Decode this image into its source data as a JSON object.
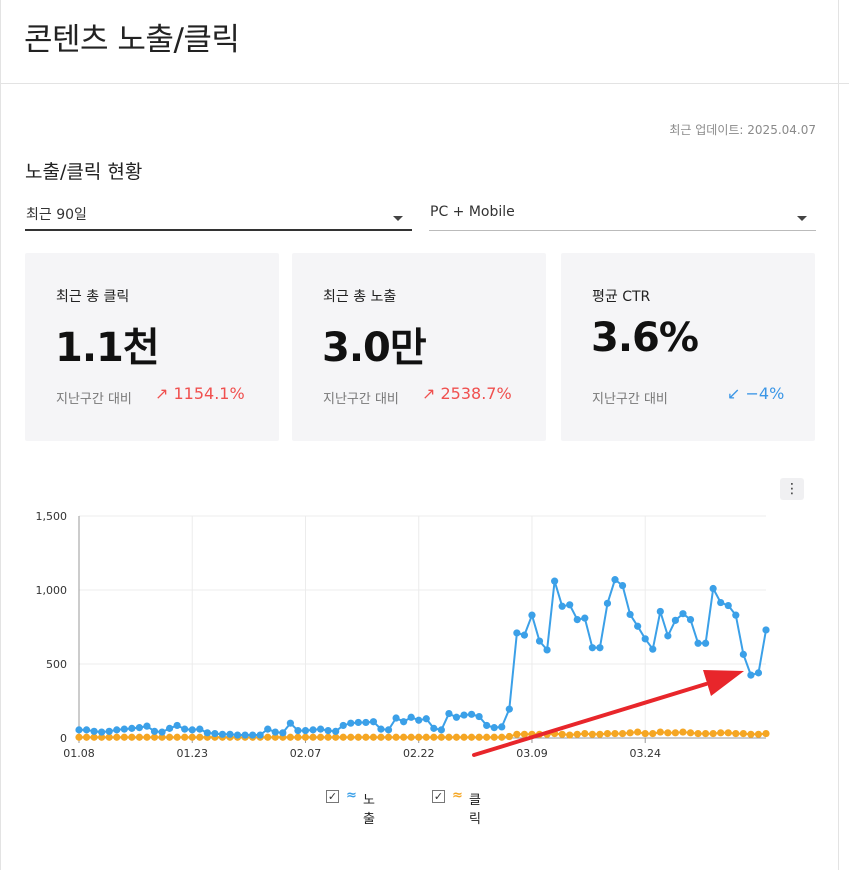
{
  "header": {
    "title": "콘텐츠 노출/클릭"
  },
  "update_text": "최근 업데이트: 2025.04.07",
  "section_title": "노출/클릭 현황",
  "filters": {
    "period": "최근 90일",
    "device": "PC + Mobile"
  },
  "cards": [
    {
      "label": "최근 총 클릭",
      "value": "1.1천",
      "sub": "지난구간 대비",
      "delta": "↗ 1154.1%",
      "direction": "up"
    },
    {
      "label": "최근 총 노출",
      "value": "3.0만",
      "sub": "지난구간 대비",
      "delta": "↗ 2538.7%",
      "direction": "up"
    },
    {
      "label": "평균 CTR",
      "value": "3.6%",
      "sub": "지난구간 대비",
      "delta": "↙ −4%",
      "direction": "down"
    }
  ],
  "menu_icon": "⋮",
  "colors": {
    "impressions": "#3ba0e8",
    "clicks": "#f5a623",
    "annotation_arrow": "#e8262b",
    "delta_up": "#f0504f",
    "delta_down": "#3b96e6"
  },
  "legend": {
    "impressions": {
      "checked": "✓",
      "symbol": "≈",
      "label": "노출"
    },
    "clicks": {
      "checked": "✓",
      "symbol": "≈",
      "label": "클릭"
    }
  },
  "chart_data": {
    "type": "line",
    "ylim": [
      0,
      1500
    ],
    "yticks": [
      0,
      500,
      1000,
      1500
    ],
    "ytick_labels": [
      "0",
      "500",
      "1,000",
      "1,500"
    ],
    "xtick_labels": [
      "01.08",
      "01.23",
      "02.07",
      "02.22",
      "03.09",
      "03.24"
    ],
    "xtick_index": [
      0,
      15,
      30,
      45,
      60,
      75
    ],
    "grid": true,
    "series": [
      {
        "name": "노출",
        "values": [
          55,
          55,
          45,
          40,
          45,
          55,
          60,
          65,
          70,
          80,
          45,
          40,
          65,
          85,
          60,
          55,
          60,
          35,
          30,
          25,
          25,
          20,
          20,
          20,
          20,
          60,
          40,
          35,
          100,
          50,
          50,
          55,
          60,
          50,
          45,
          85,
          100,
          105,
          105,
          110,
          60,
          55,
          135,
          110,
          140,
          120,
          130,
          65,
          55,
          165,
          140,
          155,
          160,
          145,
          85,
          70,
          75,
          195,
          710,
          695,
          830,
          655,
          595,
          1060,
          890,
          900,
          800,
          810,
          610,
          610,
          910,
          1070,
          1030,
          835,
          755,
          670,
          600,
          855,
          690,
          795,
          840,
          800,
          640,
          640,
          1010,
          915,
          895,
          830,
          565,
          425,
          440,
          730
        ]
      },
      {
        "name": "클릭",
        "values": [
          5,
          5,
          5,
          5,
          5,
          5,
          5,
          5,
          5,
          5,
          5,
          5,
          5,
          5,
          5,
          5,
          5,
          5,
          5,
          5,
          5,
          5,
          5,
          5,
          5,
          5,
          5,
          5,
          5,
          5,
          5,
          5,
          5,
          5,
          5,
          5,
          5,
          5,
          5,
          5,
          5,
          5,
          5,
          5,
          5,
          5,
          5,
          5,
          5,
          5,
          5,
          5,
          5,
          5,
          5,
          5,
          5,
          10,
          25,
          25,
          25,
          25,
          25,
          30,
          25,
          20,
          25,
          30,
          25,
          25,
          30,
          30,
          30,
          35,
          40,
          30,
          30,
          40,
          35,
          35,
          40,
          35,
          30,
          30,
          30,
          35,
          35,
          30,
          30,
          25,
          25,
          30
        ]
      }
    ]
  }
}
